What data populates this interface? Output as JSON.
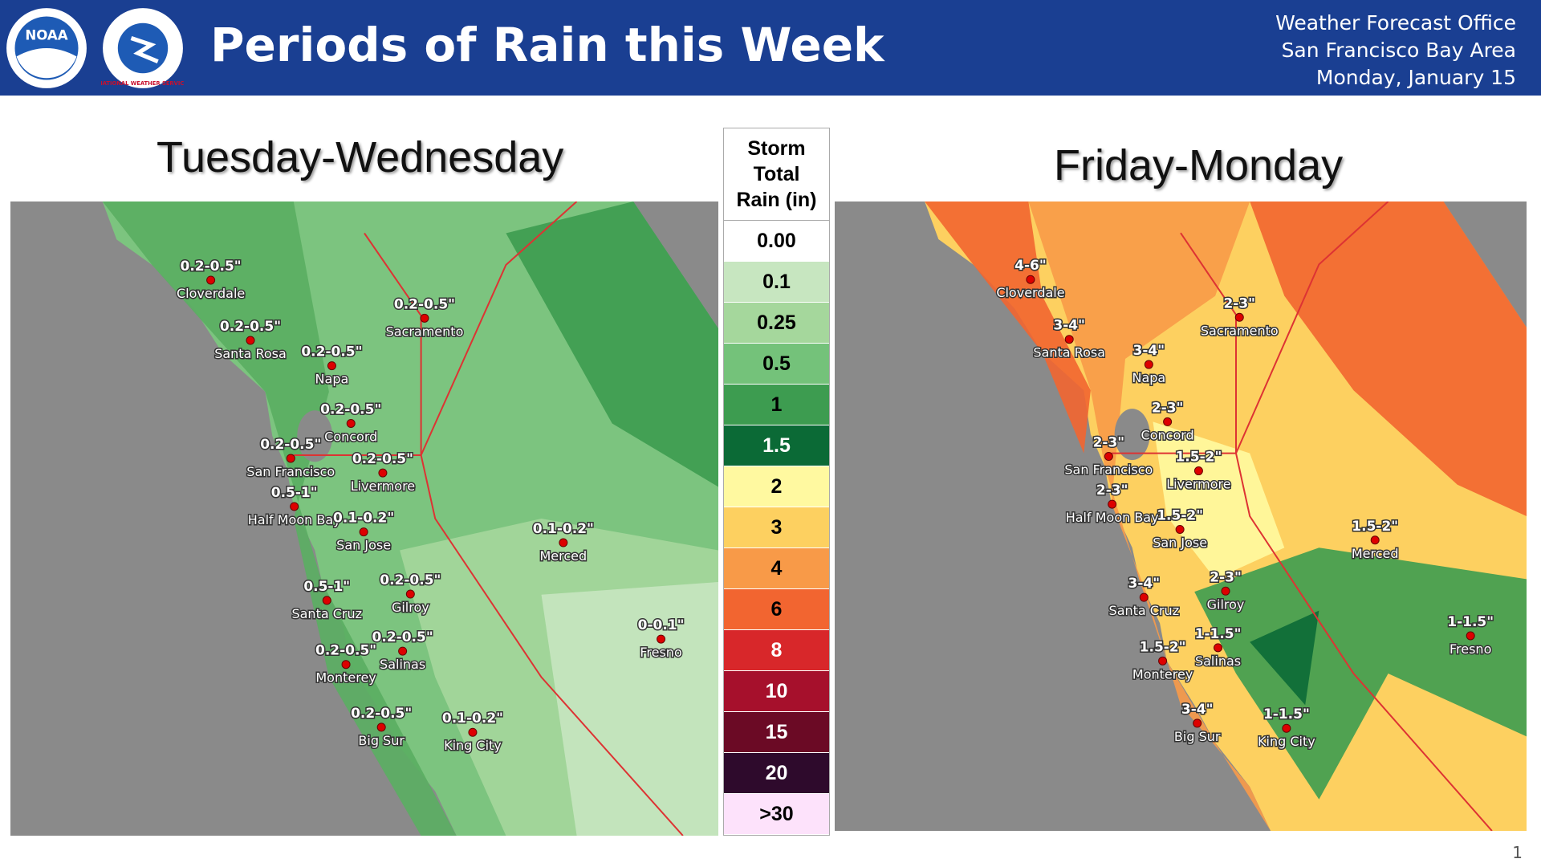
{
  "header": {
    "title": "Periods of Rain this Week",
    "logos": [
      "NOAA",
      "NATIONAL WEATHER SERVICE"
    ],
    "office": [
      "Weather Forecast Office",
      "San Francisco Bay Area",
      "Monday, January 15"
    ]
  },
  "maps": [
    {
      "title": "Tuesday-Wednesday",
      "cities": [
        {
          "name": "Cloverdale",
          "amount": "0.2-0.5\""
        },
        {
          "name": "Santa Rosa",
          "amount": "0.2-0.5\""
        },
        {
          "name": "Napa",
          "amount": "0.2-0.5\""
        },
        {
          "name": "Sacramento",
          "amount": "0.2-0.5\""
        },
        {
          "name": "Concord",
          "amount": "0.2-0.5\""
        },
        {
          "name": "San Francisco",
          "amount": "0.2-0.5\""
        },
        {
          "name": "Livermore",
          "amount": "0.2-0.5\""
        },
        {
          "name": "Half Moon Bay",
          "amount": "0.5-1\""
        },
        {
          "name": "San Jose",
          "amount": "0.1-0.2\""
        },
        {
          "name": "Merced",
          "amount": "0.1-0.2\""
        },
        {
          "name": "Santa Cruz",
          "amount": "0.5-1\""
        },
        {
          "name": "Gilroy",
          "amount": "0.2-0.5\""
        },
        {
          "name": "Salinas",
          "amount": "0.2-0.5\""
        },
        {
          "name": "Monterey",
          "amount": "0.2-0.5\""
        },
        {
          "name": "Fresno",
          "amount": "0-0.1\""
        },
        {
          "name": "Big Sur",
          "amount": "0.2-0.5\""
        },
        {
          "name": "King City",
          "amount": "0.1-0.2\""
        }
      ]
    },
    {
      "title": "Friday-Monday",
      "cities": [
        {
          "name": "Cloverdale",
          "amount": "4-6\""
        },
        {
          "name": "Santa Rosa",
          "amount": "3-4\""
        },
        {
          "name": "Napa",
          "amount": "3-4\""
        },
        {
          "name": "Sacramento",
          "amount": "2-3\""
        },
        {
          "name": "Concord",
          "amount": "2-3\""
        },
        {
          "name": "San Francisco",
          "amount": "2-3\""
        },
        {
          "name": "Livermore",
          "amount": "1.5-2\""
        },
        {
          "name": "Half Moon Bay",
          "amount": "2-3\""
        },
        {
          "name": "San Jose",
          "amount": "1.5-2\""
        },
        {
          "name": "Merced",
          "amount": "1.5-2\""
        },
        {
          "name": "Santa Cruz",
          "amount": "3-4\""
        },
        {
          "name": "Gilroy",
          "amount": "2-3\""
        },
        {
          "name": "Salinas",
          "amount": "1-1.5\""
        },
        {
          "name": "Monterey",
          "amount": "1.5-2\""
        },
        {
          "name": "Fresno",
          "amount": "1-1.5\""
        },
        {
          "name": "Big Sur",
          "amount": "3-4\""
        },
        {
          "name": "King City",
          "amount": "1-1.5\""
        }
      ]
    }
  ],
  "legend": {
    "title": [
      "Storm",
      "Total",
      "Rain (in)"
    ],
    "entries": [
      {
        "label": "0.00",
        "color": "#ffffff"
      },
      {
        "label": "0.1",
        "color": "#c7e6c0"
      },
      {
        "label": "0.25",
        "color": "#a5d79c"
      },
      {
        "label": "0.5",
        "color": "#74c27a"
      },
      {
        "label": "1",
        "color": "#3d9c50"
      },
      {
        "label": "1.5",
        "color": "#0b6a36"
      },
      {
        "label": "2",
        "color": "#fff9a0"
      },
      {
        "label": "3",
        "color": "#fdd060"
      },
      {
        "label": "4",
        "color": "#f89a48"
      },
      {
        "label": "6",
        "color": "#f26530"
      },
      {
        "label": "8",
        "color": "#d8272a"
      },
      {
        "label": "10",
        "color": "#a6102c"
      },
      {
        "label": "15",
        "color": "#6b0a25"
      },
      {
        "label": "20",
        "color": "#2e0a2c"
      },
      {
        "label": ">30",
        "color": "#fde2fb"
      }
    ]
  },
  "page_number": "1"
}
